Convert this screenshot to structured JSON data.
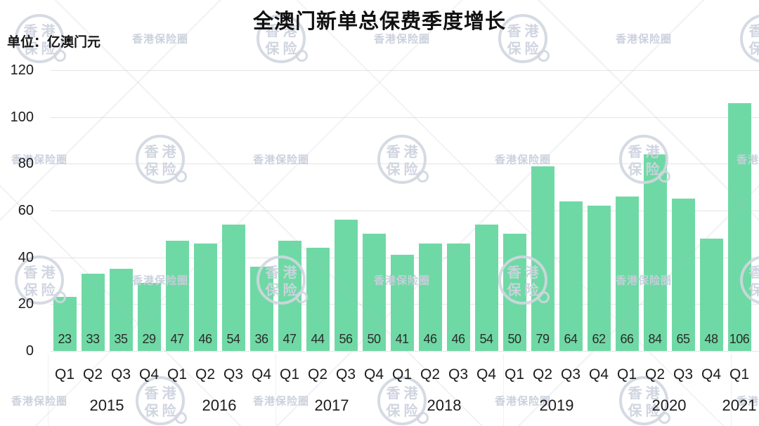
{
  "chart_data": {
    "type": "bar",
    "title": "全澳门新单总保费季度增长",
    "unit_label": "单位：亿澳门元",
    "ylabel": "亿澳门元",
    "quarter_labels": [
      "Q1",
      "Q2",
      "Q3",
      "Q4"
    ],
    "year_groups": [
      {
        "label": "2015",
        "count": 4
      },
      {
        "label": "2016",
        "count": 4
      },
      {
        "label": "2017",
        "count": 4
      },
      {
        "label": "2018",
        "count": 4
      },
      {
        "label": "2019",
        "count": 4
      },
      {
        "label": "2020",
        "count": 4
      },
      {
        "label": "2021",
        "count": 1
      }
    ],
    "categories": [
      "2015 Q1",
      "2015 Q2",
      "2015 Q3",
      "2015 Q4",
      "2016 Q1",
      "2016 Q2",
      "2016 Q3",
      "2016 Q4",
      "2017 Q1",
      "2017 Q2",
      "2017 Q3",
      "2017 Q4",
      "2018 Q1",
      "2018 Q2",
      "2018 Q3",
      "2018 Q4",
      "2019 Q1",
      "2019 Q2",
      "2019 Q3",
      "2019 Q4",
      "2020 Q1",
      "2020 Q2",
      "2020 Q3",
      "2020 Q4",
      "2021 Q1"
    ],
    "values": [
      23,
      33,
      35,
      29,
      47,
      46,
      54,
      36,
      47,
      44,
      56,
      50,
      41,
      46,
      46,
      54,
      50,
      79,
      64,
      62,
      66,
      84,
      65,
      48,
      106
    ],
    "ylim": [
      0,
      120
    ],
    "yticks": [
      0,
      20,
      40,
      60,
      80,
      100,
      120
    ],
    "grid": true,
    "legend": "none",
    "value_labels_position": "inside-bottom",
    "bar_color": "#6FD9A5"
  },
  "watermark": {
    "stamp_lines": [
      "香港",
      "保险"
    ],
    "small_text": "香港保险圈"
  }
}
